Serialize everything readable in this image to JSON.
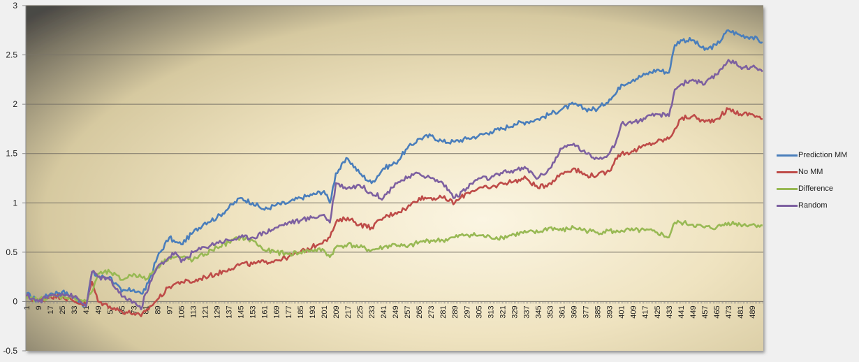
{
  "chart_data": {
    "type": "line",
    "title": "",
    "xlabel": "",
    "ylabel": "",
    "ylim": [
      -0.5,
      3
    ],
    "yticks": [
      -0.5,
      0,
      0.5,
      1,
      1.5,
      2,
      2.5,
      3
    ],
    "ytick_labels": [
      "-0.5",
      "0",
      "0.5",
      "1",
      "1.5",
      "2",
      "2.5",
      "3"
    ],
    "xrange": [
      1,
      496
    ],
    "xtick_labels": [
      "1",
      "9",
      "17",
      "25",
      "33",
      "41",
      "49",
      "57",
      "65",
      "73",
      "81",
      "89",
      "97",
      "105",
      "113",
      "121",
      "129",
      "137",
      "145",
      "153",
      "161",
      "169",
      "177",
      "185",
      "193",
      "201",
      "209",
      "217",
      "225",
      "233",
      "241",
      "249",
      "257",
      "265",
      "273",
      "281",
      "289",
      "297",
      "305",
      "313",
      "321",
      "329",
      "337",
      "345",
      "353",
      "361",
      "369",
      "377",
      "385",
      "393",
      "401",
      "409",
      "417",
      "425",
      "433",
      "441",
      "449",
      "457",
      "465",
      "473",
      "481",
      "489"
    ],
    "grid": true,
    "legend_position": "right",
    "x": [
      1,
      9,
      17,
      25,
      33,
      41,
      45,
      49,
      57,
      65,
      73,
      78,
      81,
      89,
      97,
      101,
      105,
      113,
      121,
      129,
      137,
      145,
      153,
      161,
      169,
      177,
      185,
      193,
      201,
      205,
      209,
      217,
      225,
      233,
      241,
      249,
      257,
      265,
      273,
      281,
      289,
      297,
      305,
      313,
      321,
      329,
      337,
      345,
      353,
      361,
      369,
      377,
      385,
      393,
      397,
      401,
      409,
      417,
      425,
      433,
      437,
      441,
      449,
      457,
      465,
      473,
      481,
      489,
      496
    ],
    "series": [
      {
        "name": "Prediction MM",
        "color": "#4a7ebb",
        "values": [
          0.08,
          0.0,
          0.08,
          0.1,
          0.04,
          -0.05,
          0.3,
          0.25,
          0.25,
          0.1,
          0.12,
          0.08,
          0.12,
          0.45,
          0.65,
          0.6,
          0.58,
          0.7,
          0.8,
          0.85,
          0.95,
          1.05,
          1.0,
          0.93,
          0.98,
          1.0,
          1.05,
          1.08,
          1.12,
          1.0,
          1.3,
          1.45,
          1.3,
          1.2,
          1.35,
          1.4,
          1.55,
          1.65,
          1.68,
          1.62,
          1.62,
          1.65,
          1.68,
          1.72,
          1.75,
          1.8,
          1.82,
          1.85,
          1.9,
          1.95,
          2.0,
          1.95,
          1.95,
          2.05,
          2.1,
          2.2,
          2.25,
          2.3,
          2.35,
          2.32,
          2.6,
          2.65,
          2.65,
          2.55,
          2.6,
          2.75,
          2.7,
          2.68,
          2.63
        ]
      },
      {
        "name": "No MM",
        "color": "#be4b48",
        "values": [
          0.05,
          0.0,
          0.05,
          0.05,
          0.0,
          -0.03,
          0.2,
          0.0,
          -0.05,
          -0.1,
          -0.12,
          -0.15,
          -0.1,
          0.02,
          0.15,
          0.18,
          0.2,
          0.2,
          0.25,
          0.28,
          0.33,
          0.38,
          0.38,
          0.4,
          0.42,
          0.45,
          0.5,
          0.55,
          0.62,
          0.65,
          0.8,
          0.85,
          0.78,
          0.75,
          0.85,
          0.9,
          0.95,
          1.05,
          1.05,
          1.05,
          1.0,
          1.1,
          1.15,
          1.15,
          1.2,
          1.22,
          1.25,
          1.15,
          1.2,
          1.3,
          1.35,
          1.28,
          1.28,
          1.32,
          1.45,
          1.5,
          1.52,
          1.58,
          1.62,
          1.65,
          1.75,
          1.85,
          1.88,
          1.82,
          1.85,
          1.95,
          1.9,
          1.9,
          1.85
        ]
      },
      {
        "name": "Difference",
        "color": "#98b954",
        "values": [
          0.03,
          0.02,
          0.05,
          0.05,
          0.04,
          0.0,
          0.1,
          0.28,
          0.3,
          0.22,
          0.28,
          0.25,
          0.22,
          0.35,
          0.45,
          0.45,
          0.45,
          0.42,
          0.48,
          0.55,
          0.6,
          0.65,
          0.62,
          0.52,
          0.5,
          0.48,
          0.5,
          0.52,
          0.52,
          0.45,
          0.55,
          0.58,
          0.55,
          0.52,
          0.55,
          0.58,
          0.55,
          0.6,
          0.62,
          0.62,
          0.65,
          0.68,
          0.67,
          0.65,
          0.65,
          0.68,
          0.7,
          0.7,
          0.75,
          0.72,
          0.75,
          0.72,
          0.7,
          0.72,
          0.7,
          0.72,
          0.72,
          0.72,
          0.7,
          0.65,
          0.8,
          0.8,
          0.78,
          0.75,
          0.75,
          0.8,
          0.78,
          0.78,
          0.77
        ]
      },
      {
        "name": "Random",
        "color": "#7d60a0",
        "values": [
          0.06,
          0.0,
          0.06,
          0.08,
          0.05,
          -0.05,
          0.3,
          0.25,
          0.22,
          0.05,
          0.0,
          -0.08,
          0.08,
          0.35,
          0.45,
          0.5,
          0.4,
          0.5,
          0.55,
          0.6,
          0.62,
          0.65,
          0.65,
          0.7,
          0.75,
          0.8,
          0.82,
          0.85,
          0.88,
          0.8,
          1.2,
          1.15,
          1.18,
          1.1,
          1.05,
          1.2,
          1.25,
          1.3,
          1.25,
          1.2,
          1.05,
          1.15,
          1.25,
          1.25,
          1.3,
          1.33,
          1.35,
          1.25,
          1.35,
          1.55,
          1.6,
          1.5,
          1.45,
          1.5,
          1.6,
          1.8,
          1.82,
          1.85,
          1.9,
          1.88,
          2.15,
          2.2,
          2.25,
          2.2,
          2.3,
          2.45,
          2.38,
          2.38,
          2.33
        ]
      }
    ]
  },
  "legend": {
    "items": [
      {
        "label": "Prediction MM",
        "color": "#4a7ebb"
      },
      {
        "label": "No MM",
        "color": "#be4b48"
      },
      {
        "label": "Difference",
        "color": "#98b954"
      },
      {
        "label": "Random",
        "color": "#7d60a0"
      }
    ]
  }
}
